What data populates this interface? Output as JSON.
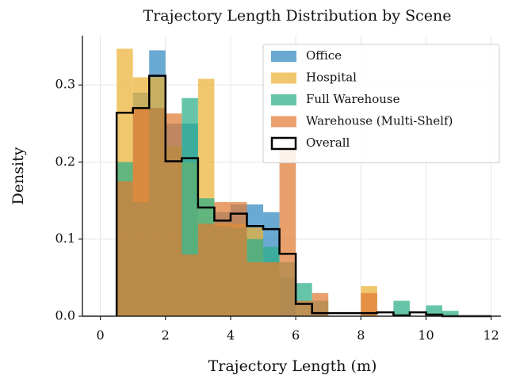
{
  "chart_data": {
    "type": "histogram",
    "title": "Trajectory Length Distribution by Scene",
    "xlabel": "Trajectory Length (m)",
    "ylabel": "Density",
    "bins": [
      0.5,
      1,
      1.5,
      2,
      2.5,
      3,
      3.5,
      4,
      4.5,
      5,
      5.5,
      6,
      6.5,
      7,
      7.5,
      8,
      8.5,
      9,
      9.5,
      10,
      10.5,
      11,
      11.5,
      12
    ],
    "series": [
      {
        "name": "Office",
        "color": "#2f88c0",
        "values": [
          0.175,
          0.29,
          0.345,
          0.25,
          0.25,
          0.12,
          0.135,
          0.145,
          0.145,
          0.135,
          0.05,
          0,
          0,
          0,
          0,
          0,
          0,
          0,
          0,
          0,
          0,
          0,
          0
        ]
      },
      {
        "name": "Hospital",
        "color": "#ebb136",
        "values": [
          0.347,
          0.31,
          0.31,
          0.22,
          0.2,
          0.308,
          0.12,
          0.12,
          0.115,
          0.07,
          0,
          0,
          0,
          0,
          0,
          0.039,
          0,
          0,
          0,
          0,
          0,
          0,
          0
        ]
      },
      {
        "name": "Full Warehouse",
        "color": "#2bae86",
        "values": [
          0.2,
          0.148,
          0.27,
          0.22,
          0.283,
          0.153,
          0.117,
          0.115,
          0.1,
          0.09,
          0.07,
          0.043,
          0.02,
          0,
          0,
          0,
          0,
          0.02,
          0,
          0.014,
          0.007,
          0,
          0
        ]
      },
      {
        "name": "Warehouse (Multi-Shelf)",
        "color": "#e07b35",
        "values": [
          0.175,
          0.27,
          0.27,
          0.263,
          0.08,
          0.12,
          0.148,
          0.148,
          0.07,
          0.07,
          0.215,
          0.02,
          0.03,
          0,
          0,
          0.03,
          0,
          0,
          0,
          0,
          0,
          0,
          0
        ]
      }
    ],
    "overall": {
      "name": "Overall",
      "color": "#000000",
      "values": [
        0.264,
        0.27,
        0.312,
        0.201,
        0.205,
        0.141,
        0.124,
        0.133,
        0.117,
        0.113,
        0.081,
        0.016,
        0.004,
        0.004,
        0.004,
        0.004,
        0.005,
        0.001,
        0.005,
        0.002,
        0,
        0,
        0
      ]
    },
    "alpha": 0.72,
    "xlim": [
      -0.55,
      12.3
    ],
    "ylim": [
      0,
      0.364
    ],
    "xticks": [
      0,
      2,
      4,
      6,
      8,
      10,
      12
    ],
    "yticks": [
      {
        "value": 0,
        "label": "0.0"
      },
      0.1,
      0.2,
      0.3
    ],
    "grid": true,
    "legend": "upper right"
  }
}
